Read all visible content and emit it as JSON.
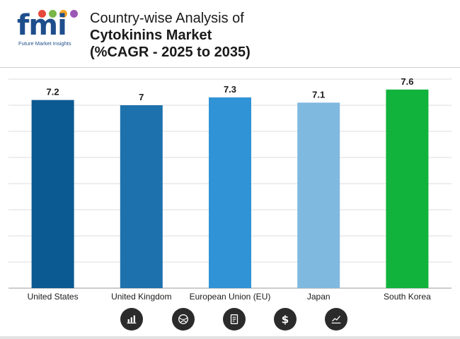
{
  "logo": {
    "text": "fmi",
    "subtitle": "Future Market Insights",
    "dot_colors": [
      "#e8483b",
      "#7ab648",
      "#f5a623",
      "#9b59b6"
    ]
  },
  "header": {
    "title_line1": "Country-wise Analysis of",
    "title_line2": "Cytokinins Market",
    "title_line3": "(%CAGR - 2025 to 2035)"
  },
  "chart_data": {
    "type": "bar",
    "categories": [
      "United States",
      "United Kingdom",
      "European Union (EU)",
      "Japan",
      "South Korea"
    ],
    "values": [
      7.2,
      7,
      7.3,
      7.1,
      7.6
    ],
    "value_labels": [
      "7.2",
      "7",
      "7.3",
      "7.1",
      "7.6"
    ],
    "colors": [
      "#0b5a91",
      "#1d72ad",
      "#2f93d6",
      "#7fb9e0",
      "#12b33c"
    ],
    "ylim": [
      0,
      8
    ],
    "grid": true,
    "xlabel": "",
    "ylabel": ""
  },
  "footer_icons": [
    "bar-chart-icon",
    "globe-icon",
    "report-icon",
    "dollar-icon",
    "line-chart-icon"
  ]
}
